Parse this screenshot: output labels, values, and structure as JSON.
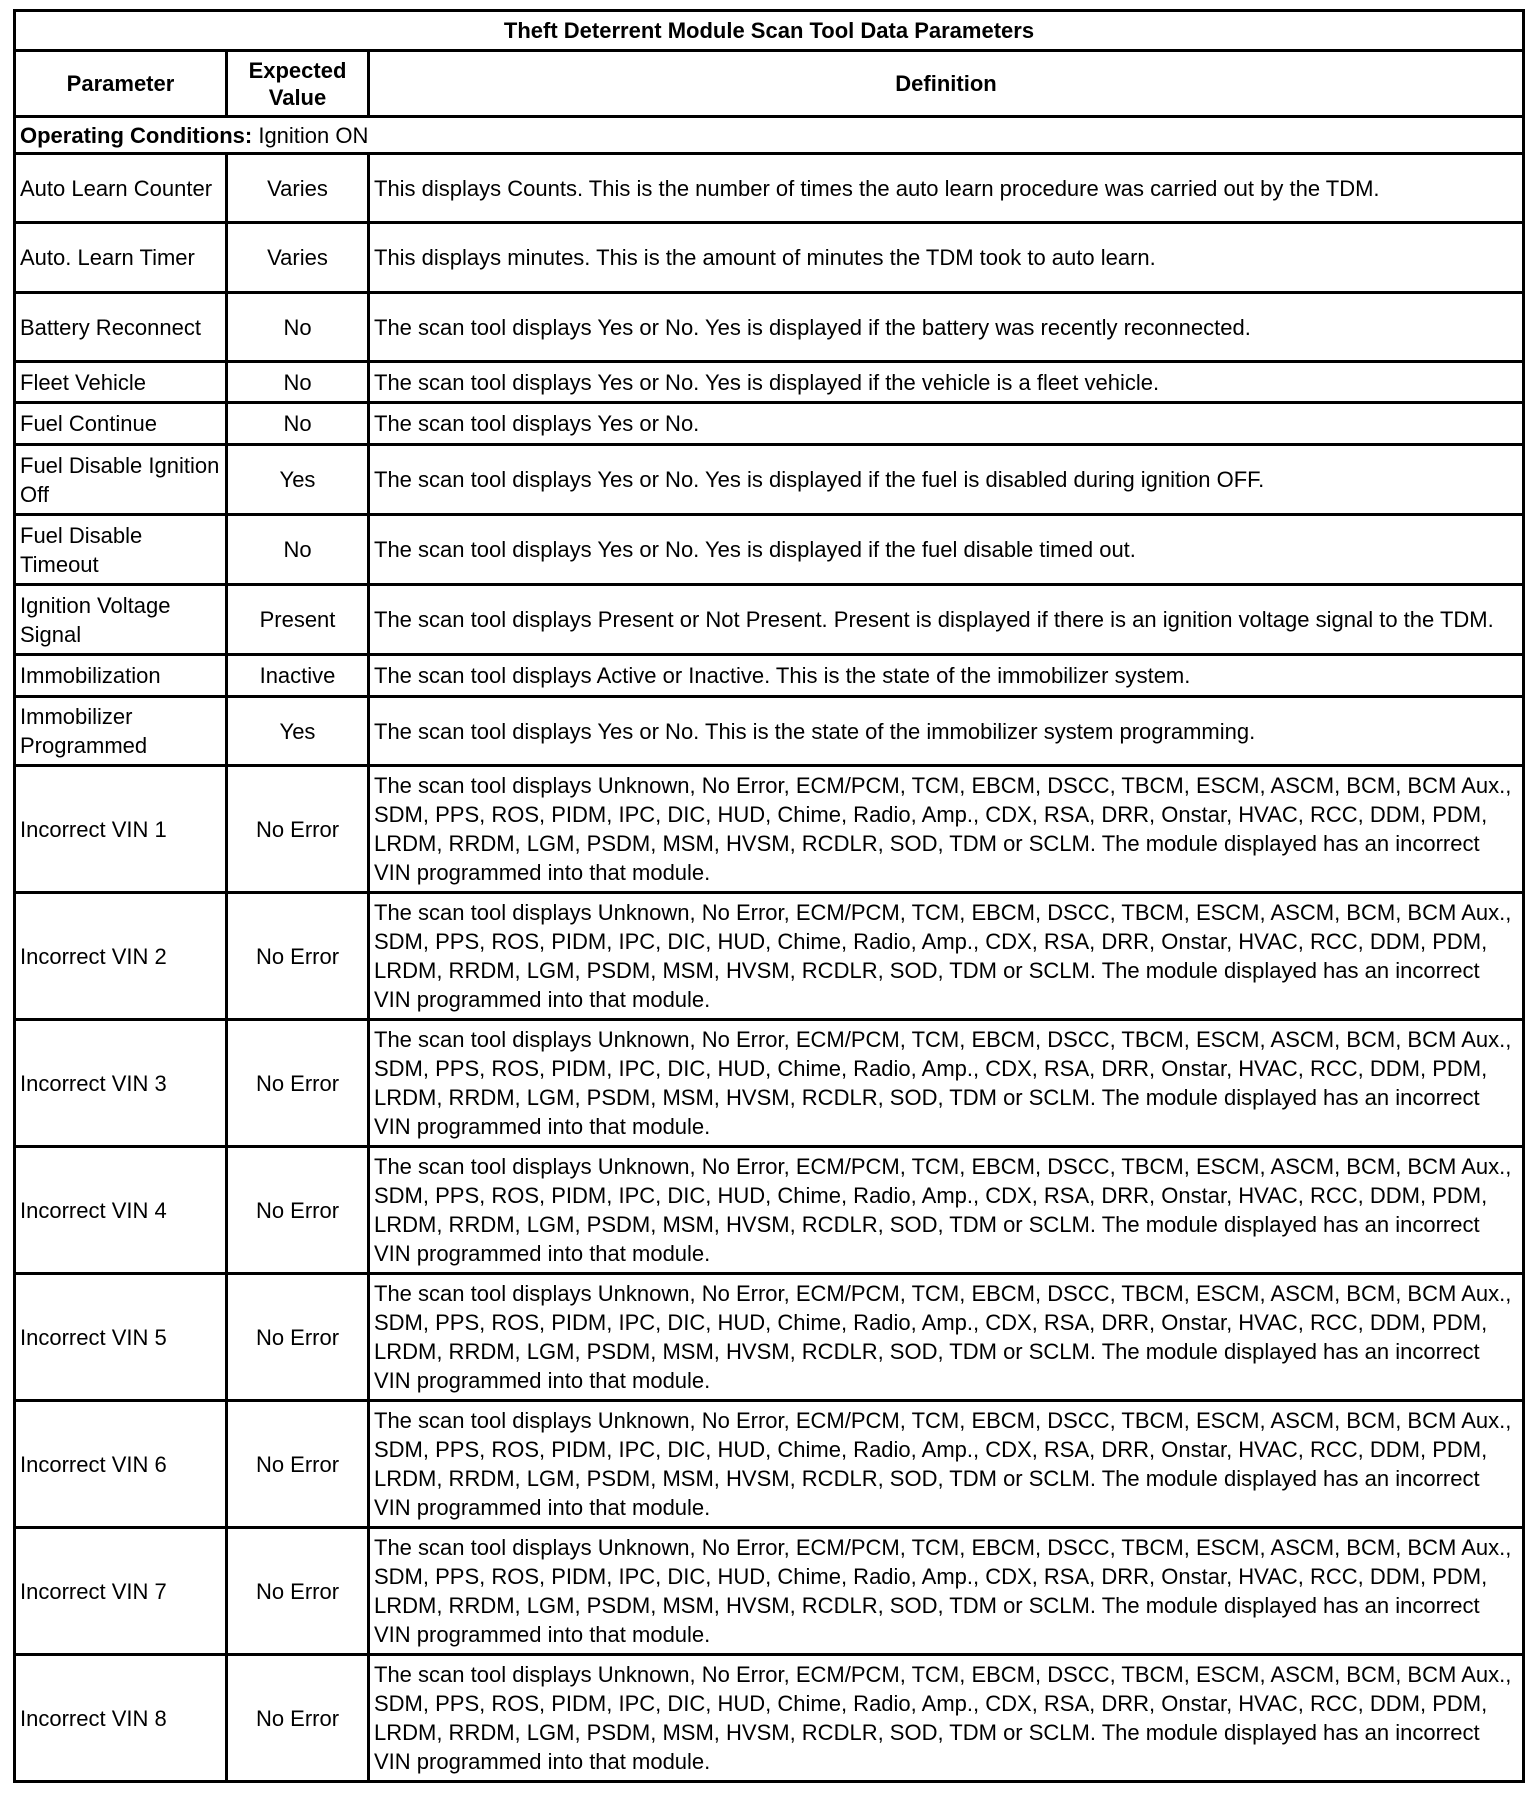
{
  "title": "Theft Deterrent Module Scan Tool Data Parameters",
  "headers": {
    "parameter": "Parameter",
    "expected": "Expected Value",
    "definition": "Definition"
  },
  "operating_conditions": {
    "label": "Operating Conditions:",
    "value": "Ignition ON"
  },
  "rows": [
    {
      "parameter": "Auto Learn Counter",
      "expected": "Varies",
      "definition": "This displays Counts. This is the number of times the auto learn procedure was carried out by the TDM."
    },
    {
      "parameter": "Auto. Learn Timer",
      "expected": "Varies",
      "definition": "This displays minutes. This is the amount of minutes the TDM took to auto learn."
    },
    {
      "parameter": "Battery Reconnect",
      "expected": "No",
      "definition": "The scan tool displays Yes or No. Yes is displayed if the battery was recently reconnected."
    },
    {
      "parameter": "Fleet Vehicle",
      "expected": "No",
      "definition": "The scan tool displays Yes or No. Yes is displayed if the vehicle is a fleet vehicle."
    },
    {
      "parameter": "Fuel Continue",
      "expected": "No",
      "definition": "The scan tool displays Yes or No."
    },
    {
      "parameter": "Fuel Disable Ignition Off",
      "expected": "Yes",
      "definition": "The scan tool displays Yes or No. Yes is displayed if the fuel is disabled during ignition OFF."
    },
    {
      "parameter": "Fuel Disable Timeout",
      "expected": "No",
      "definition": "The scan tool displays Yes or No. Yes is displayed if the fuel disable timed out."
    },
    {
      "parameter": "Ignition Voltage Signal",
      "expected": "Present",
      "definition": "The scan tool displays Present or Not Present. Present is displayed if there is an ignition voltage signal to the TDM."
    },
    {
      "parameter": "Immobilization",
      "expected": "Inactive",
      "definition": "The scan tool displays Active or Inactive. This is the state of the immobilizer system."
    },
    {
      "parameter": "Immobilizer Programmed",
      "expected": "Yes",
      "definition": "The scan tool displays Yes or No. This is the state of the immobilizer system programming."
    },
    {
      "parameter": "Incorrect VIN 1",
      "expected": "No Error",
      "definition": "The scan tool displays Unknown, No Error, ECM/PCM, TCM, EBCM, DSCC, TBCM, ESCM, ASCM, BCM, BCM Aux., SDM, PPS, ROS, PIDM, IPC, DIC, HUD, Chime, Radio, Amp., CDX, RSA, DRR, Onstar, HVAC, RCC, DDM, PDM, LRDM, RRDM, LGM, PSDM, MSM, HVSM, RCDLR, SOD, TDM or SCLM. The module displayed has an incorrect VIN programmed into that module."
    },
    {
      "parameter": "Incorrect VIN 2",
      "expected": "No Error",
      "definition": "The scan tool displays Unknown, No Error, ECM/PCM, TCM, EBCM, DSCC, TBCM, ESCM, ASCM, BCM, BCM Aux., SDM, PPS, ROS, PIDM, IPC, DIC, HUD, Chime, Radio, Amp., CDX, RSA, DRR, Onstar, HVAC, RCC, DDM, PDM, LRDM, RRDM, LGM, PSDM, MSM, HVSM, RCDLR, SOD, TDM or SCLM. The module displayed has an incorrect VIN programmed into that module."
    },
    {
      "parameter": "Incorrect VIN 3",
      "expected": "No Error",
      "definition": "The scan tool displays Unknown, No Error, ECM/PCM, TCM, EBCM, DSCC, TBCM, ESCM, ASCM, BCM, BCM Aux., SDM, PPS, ROS, PIDM, IPC, DIC, HUD, Chime, Radio, Amp., CDX, RSA, DRR, Onstar, HVAC, RCC, DDM, PDM, LRDM, RRDM, LGM, PSDM, MSM, HVSM, RCDLR, SOD, TDM or SCLM. The module displayed has an incorrect VIN programmed into that module."
    },
    {
      "parameter": "Incorrect VIN 4",
      "expected": "No Error",
      "definition": "The scan tool displays Unknown, No Error, ECM/PCM, TCM, EBCM, DSCC, TBCM, ESCM, ASCM, BCM, BCM Aux., SDM, PPS, ROS, PIDM, IPC, DIC, HUD, Chime, Radio, Amp., CDX, RSA, DRR, Onstar, HVAC, RCC, DDM, PDM, LRDM, RRDM, LGM, PSDM, MSM, HVSM, RCDLR, SOD, TDM or SCLM. The module displayed has an incorrect VIN programmed into that module."
    },
    {
      "parameter": "Incorrect VIN 5",
      "expected": "No Error",
      "definition": "The scan tool displays Unknown, No Error, ECM/PCM, TCM, EBCM, DSCC, TBCM, ESCM, ASCM, BCM, BCM Aux., SDM, PPS, ROS, PIDM, IPC, DIC, HUD, Chime, Radio, Amp., CDX, RSA, DRR, Onstar, HVAC, RCC, DDM, PDM, LRDM, RRDM, LGM, PSDM, MSM, HVSM, RCDLR, SOD, TDM or SCLM. The module displayed has an incorrect VIN programmed into that module."
    },
    {
      "parameter": "Incorrect VIN 6",
      "expected": "No Error",
      "definition": "The scan tool displays Unknown, No Error, ECM/PCM, TCM, EBCM, DSCC, TBCM, ESCM, ASCM, BCM, BCM Aux., SDM, PPS, ROS, PIDM, IPC, DIC, HUD, Chime, Radio, Amp., CDX, RSA, DRR, Onstar, HVAC, RCC, DDM, PDM, LRDM, RRDM, LGM, PSDM, MSM, HVSM, RCDLR, SOD, TDM or SCLM. The module displayed has an incorrect VIN programmed into that module."
    },
    {
      "parameter": "Incorrect VIN 7",
      "expected": "No Error",
      "definition": "The scan tool displays Unknown, No Error, ECM/PCM, TCM, EBCM, DSCC, TBCM, ESCM, ASCM, BCM, BCM Aux., SDM, PPS, ROS, PIDM, IPC, DIC, HUD, Chime, Radio, Amp., CDX, RSA, DRR, Onstar, HVAC, RCC, DDM, PDM, LRDM, RRDM, LGM, PSDM, MSM, HVSM, RCDLR, SOD, TDM or SCLM. The module displayed has an incorrect VIN programmed into that module."
    },
    {
      "parameter": "Incorrect VIN 8",
      "expected": "No Error",
      "definition": "The scan tool displays Unknown, No Error, ECM/PCM, TCM, EBCM, DSCC, TBCM, ESCM, ASCM, BCM, BCM Aux., SDM, PPS, ROS, PIDM, IPC, DIC, HUD, Chime, Radio, Amp., CDX, RSA, DRR, Onstar, HVAC, RCC, DDM, PDM, LRDM, RRDM, LGM, PSDM, MSM, HVSM, RCDLR, SOD, TDM or SCLM. The module displayed has an incorrect VIN programmed into that module."
    }
  ]
}
